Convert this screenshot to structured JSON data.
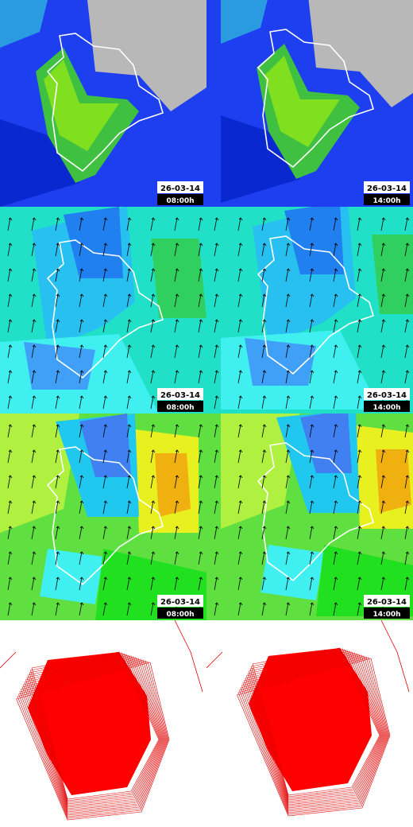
{
  "panels": [
    {
      "date": "26-03-14",
      "time": "08:00h"
    },
    {
      "date": "26-03-14",
      "time": "14:00h"
    },
    {
      "date": "26-03-14",
      "time": "08:00h"
    },
    {
      "date": "26-03-14",
      "time": "14:00h"
    },
    {
      "date": "26-03-14",
      "time": "08:00h"
    },
    {
      "date": "26-03-14",
      "time": "14:00h"
    }
  ]
}
